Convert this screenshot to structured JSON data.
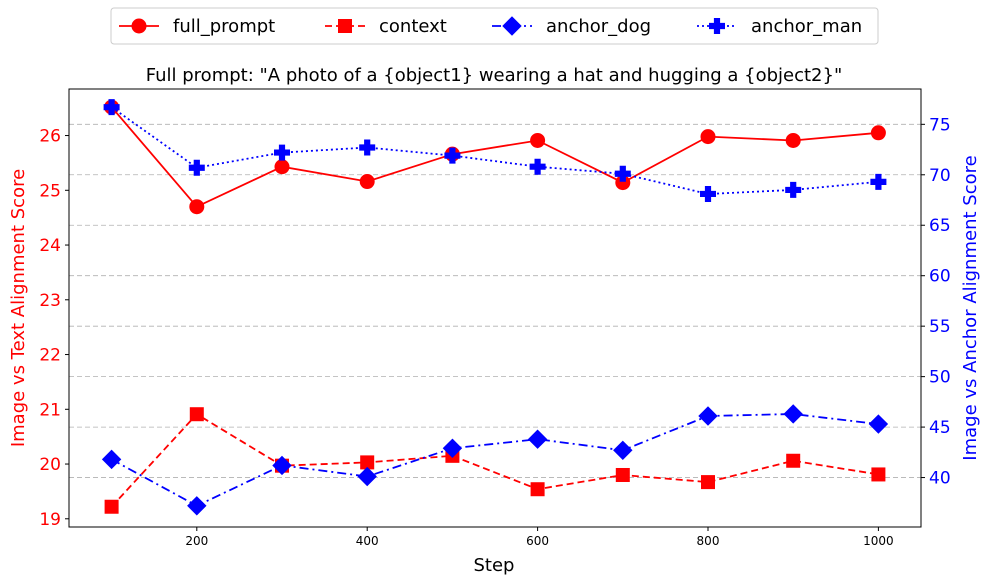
{
  "chart_data": {
    "type": "line",
    "title": "Full prompt: \"A photo of a {object1} wearing a hat and hugging a {object2}\"",
    "xlabel": "Step",
    "ylabel_left": "Image vs Text Alignment Score",
    "ylabel_right": "Image vs Anchor Alignment Score",
    "x": [
      100,
      200,
      300,
      400,
      500,
      600,
      700,
      800,
      900,
      1000
    ],
    "xlim": [
      50,
      1050
    ],
    "ylim_left": [
      18.85,
      26.85
    ],
    "ylim_right": [
      35.1,
      78.5
    ],
    "xticks": [
      200,
      400,
      600,
      800,
      1000
    ],
    "yticks_left": [
      19,
      20,
      21,
      22,
      23,
      24,
      25,
      26
    ],
    "yticks_right": [
      40,
      45,
      50,
      55,
      60,
      65,
      70,
      75
    ],
    "grid": "horizontal dashed on right axis ticks",
    "legend_position": "top-center",
    "series": [
      {
        "name": "full_prompt",
        "axis": "left",
        "color": "#ff0000",
        "linestyle": "solid",
        "marker": "circle",
        "values": [
          26.52,
          24.7,
          25.43,
          25.16,
          25.66,
          25.91,
          25.14,
          25.98,
          25.91,
          26.05
        ]
      },
      {
        "name": "context",
        "axis": "left",
        "color": "#ff0000",
        "linestyle": "dashed",
        "marker": "square",
        "values": [
          19.22,
          20.91,
          19.97,
          20.03,
          20.15,
          19.54,
          19.8,
          19.67,
          20.06,
          19.81
        ]
      },
      {
        "name": "anchor_dog",
        "axis": "right",
        "color": "#0000ff",
        "linestyle": "dashdot",
        "marker": "diamond",
        "values": [
          41.8,
          37.2,
          41.2,
          40.1,
          42.9,
          43.8,
          42.7,
          46.1,
          46.3,
          45.3
        ]
      },
      {
        "name": "anchor_man",
        "axis": "right",
        "color": "#0000ff",
        "linestyle": "dotted",
        "marker": "plus",
        "values": [
          76.7,
          70.7,
          72.2,
          72.7,
          71.9,
          70.8,
          70.1,
          68.1,
          68.5,
          69.3
        ]
      }
    ]
  }
}
